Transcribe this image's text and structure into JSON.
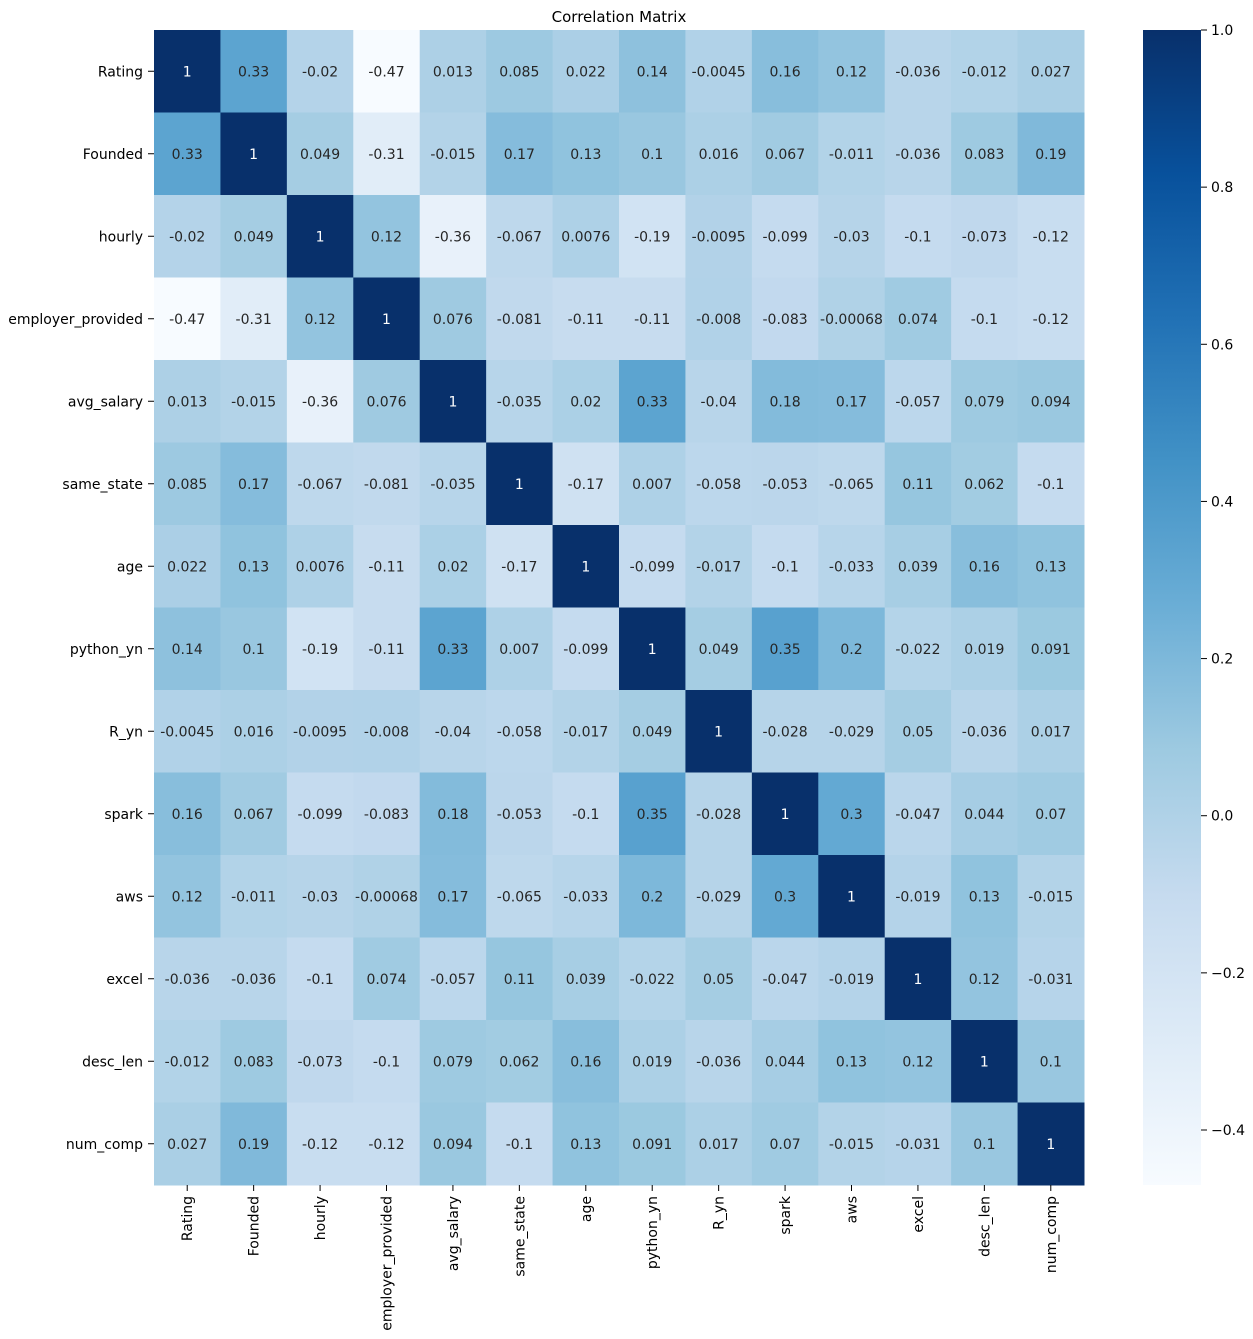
{
  "chart_data": {
    "type": "heatmap",
    "title": "Correlation Matrix",
    "xlabel": "",
    "ylabel": "",
    "labels": [
      "Rating",
      "Founded",
      "hourly",
      "employer_provided",
      "avg_salary",
      "same_state",
      "age",
      "python_yn",
      "R_yn",
      "spark",
      "aws",
      "excel",
      "desc_len",
      "num_comp"
    ],
    "annotations": [
      [
        "1",
        "0.33",
        "-0.02",
        "-0.47",
        "0.013",
        "0.085",
        "0.022",
        "0.14",
        "-0.0045",
        "0.16",
        "0.12",
        "-0.036",
        "-0.012",
        "0.027"
      ],
      [
        "0.33",
        "1",
        "0.049",
        "-0.31",
        "-0.015",
        "0.17",
        "0.13",
        "0.1",
        "0.016",
        "0.067",
        "-0.011",
        "-0.036",
        "0.083",
        "0.19"
      ],
      [
        "-0.02",
        "0.049",
        "1",
        "0.12",
        "-0.36",
        "-0.067",
        "0.0076",
        "-0.19",
        "-0.0095",
        "-0.099",
        "-0.03",
        "-0.1",
        "-0.073",
        "-0.12"
      ],
      [
        "-0.47",
        "-0.31",
        "0.12",
        "1",
        "0.076",
        "-0.081",
        "-0.11",
        "-0.11",
        "-0.008",
        "-0.083",
        "-0.00068",
        "0.074",
        "-0.1",
        "-0.12"
      ],
      [
        "0.013",
        "-0.015",
        "-0.36",
        "0.076",
        "1",
        "-0.035",
        "0.02",
        "0.33",
        "-0.04",
        "0.18",
        "0.17",
        "-0.057",
        "0.079",
        "0.094"
      ],
      [
        "0.085",
        "0.17",
        "-0.067",
        "-0.081",
        "-0.035",
        "1",
        "-0.17",
        "0.007",
        "-0.058",
        "-0.053",
        "-0.065",
        "0.11",
        "0.062",
        "-0.1"
      ],
      [
        "0.022",
        "0.13",
        "0.0076",
        "-0.11",
        "0.02",
        "-0.17",
        "1",
        "-0.099",
        "-0.017",
        "-0.1",
        "-0.033",
        "0.039",
        "0.16",
        "0.13"
      ],
      [
        "0.14",
        "0.1",
        "-0.19",
        "-0.11",
        "0.33",
        "0.007",
        "-0.099",
        "1",
        "0.049",
        "0.35",
        "0.2",
        "-0.022",
        "0.019",
        "0.091"
      ],
      [
        "-0.0045",
        "0.016",
        "-0.0095",
        "-0.008",
        "-0.04",
        "-0.058",
        "-0.017",
        "0.049",
        "1",
        "-0.028",
        "-0.029",
        "0.05",
        "-0.036",
        "0.017"
      ],
      [
        "0.16",
        "0.067",
        "-0.099",
        "-0.083",
        "0.18",
        "-0.053",
        "-0.1",
        "0.35",
        "-0.028",
        "1",
        "0.3",
        "-0.047",
        "0.044",
        "0.07"
      ],
      [
        "0.12",
        "-0.011",
        "-0.03",
        "-0.00068",
        "0.17",
        "-0.065",
        "-0.033",
        "0.2",
        "-0.029",
        "0.3",
        "1",
        "-0.019",
        "0.13",
        "-0.015"
      ],
      [
        "-0.036",
        "-0.036",
        "-0.1",
        "0.074",
        "-0.057",
        "0.11",
        "0.039",
        "-0.022",
        "0.05",
        "-0.047",
        "-0.019",
        "1",
        "0.12",
        "-0.031"
      ],
      [
        "-0.012",
        "0.083",
        "-0.073",
        "-0.1",
        "0.079",
        "0.062",
        "0.16",
        "0.019",
        "-0.036",
        "0.044",
        "0.13",
        "0.12",
        "1",
        "0.1"
      ],
      [
        "0.027",
        "0.19",
        "-0.12",
        "-0.12",
        "0.094",
        "-0.1",
        "0.13",
        "0.091",
        "0.017",
        "0.07",
        "-0.015",
        "-0.031",
        "0.1",
        "1"
      ]
    ],
    "vmin": -0.47,
    "vmax": 1.0,
    "colormap": "Blues",
    "colorbar_ticks": [
      1.0,
      0.8,
      0.6,
      0.4,
      0.2,
      0.0,
      -0.2,
      -0.4
    ],
    "colorbar_tick_labels": [
      "1.0",
      "0.8",
      "0.6",
      "0.4",
      "0.2",
      "0.0",
      "−0.2",
      "−0.4"
    ]
  },
  "colors": {
    "text_dark": "#262626",
    "text_light": "#ffffff",
    "axis": "#000000"
  }
}
